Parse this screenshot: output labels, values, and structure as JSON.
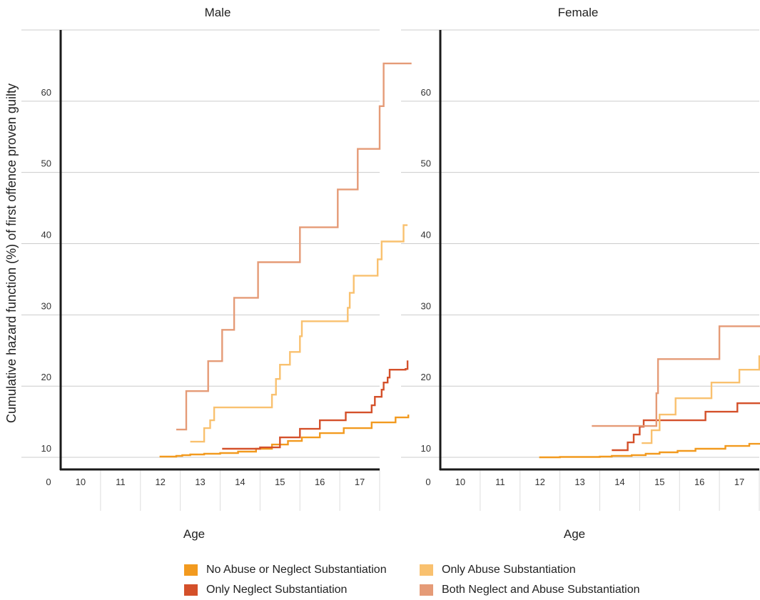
{
  "panels": [
    {
      "title": "Male"
    },
    {
      "title": "Female"
    }
  ],
  "y_axis_label": "Cumulative hazard function (%) of first offence proven guilty",
  "x_axis_label": "Age",
  "legend": [
    {
      "label": "No Abuse or Neglect Substantiation",
      "color": "#f29a1f"
    },
    {
      "label": "Only Abuse Substantiation",
      "color": "#f9c16f"
    },
    {
      "label": "Only Neglect Substantiation",
      "color": "#d4502a"
    },
    {
      "label": "Both Neglect and Abuse Substantiation",
      "color": "#e59b77"
    }
  ],
  "chart_data": [
    {
      "type": "line",
      "step": true,
      "title": "Male",
      "xlabel": "Age",
      "ylabel": "Cumulative hazard function (%) of first offence proven guilty",
      "x_tick_labels": [
        "0",
        "10",
        "11",
        "12",
        "13",
        "14",
        "15",
        "16",
        "17"
      ],
      "y_tick_labels": [
        "10",
        "20",
        "30",
        "40",
        "50",
        "60"
      ],
      "y_ticks": [
        10,
        20,
        30,
        40,
        50,
        60
      ],
      "ylim": [
        8.3,
        70
      ],
      "grid": true,
      "series": [
        {
          "name": "No Abuse or Neglect Substantiation",
          "x": [
            10.98,
            11.4,
            11.55,
            11.75,
            12.1,
            12.5,
            12.95,
            13.4,
            13.8,
            14.2,
            14.55,
            15.0,
            15.6,
            16.3,
            16.9,
            17.22
          ],
          "y": [
            10.1,
            10.2,
            10.3,
            10.4,
            10.5,
            10.6,
            10.8,
            11.2,
            11.8,
            12.3,
            12.8,
            13.4,
            14.1,
            14.9,
            15.6,
            16.0
          ]
        },
        {
          "name": "Only Neglect Substantiation",
          "x": [
            12.55,
            13.5,
            14.0,
            14.5,
            15.0,
            15.65,
            16.3,
            16.38,
            16.55,
            16.6,
            16.7,
            16.75,
            17.15,
            17.2
          ],
          "y": [
            11.2,
            11.4,
            12.8,
            14.0,
            15.2,
            16.3,
            17.3,
            18.5,
            19.5,
            20.5,
            21.2,
            22.3,
            22.4,
            23.6
          ]
        },
        {
          "name": "Only Abuse Substantiation",
          "x": [
            11.75,
            12.1,
            12.25,
            12.35,
            13.6,
            13.8,
            13.9,
            14.0,
            14.25,
            14.5,
            14.55,
            15.65,
            15.7,
            15.75,
            15.85,
            16.35,
            16.45,
            16.55,
            17.1,
            17.2
          ],
          "y": [
            12.2,
            14.1,
            15.2,
            17.0,
            17.0,
            18.8,
            21.0,
            23.0,
            24.8,
            27.0,
            29.1,
            29.1,
            31.0,
            33.1,
            35.5,
            35.5,
            37.8,
            40.3,
            42.6,
            42.6
          ]
        },
        {
          "name": "Both Neglect and Abuse Substantiation",
          "x": [
            11.4,
            11.65,
            12.2,
            12.55,
            12.85,
            13.45,
            14.5,
            15.0,
            15.45,
            15.95,
            16.05,
            16.5,
            16.6,
            17.3
          ],
          "y": [
            13.9,
            19.3,
            23.5,
            27.9,
            32.4,
            37.4,
            42.3,
            42.3,
            47.6,
            53.3,
            53.3,
            59.3,
            65.3,
            65.3
          ]
        }
      ]
    },
    {
      "type": "line",
      "step": true,
      "title": "Female",
      "xlabel": "Age",
      "ylabel": "",
      "x_tick_labels": [
        "0",
        "10",
        "11",
        "12",
        "13",
        "14",
        "15",
        "16",
        "17"
      ],
      "y_tick_labels": [
        "10",
        "20",
        "30",
        "40",
        "50",
        "60"
      ],
      "y_ticks": [
        10,
        20,
        30,
        40,
        50,
        60
      ],
      "ylim": [
        8.3,
        70
      ],
      "grid": true,
      "series": [
        {
          "name": "No Abuse or Neglect Substantiation",
          "x": [
            10.98,
            11.5,
            12.5,
            12.8,
            13.3,
            13.65,
            14.0,
            14.45,
            14.9,
            15.65,
            16.25,
            16.6,
            17.05,
            17.25
          ],
          "y": [
            10.0,
            10.05,
            10.1,
            10.2,
            10.3,
            10.5,
            10.7,
            10.9,
            11.2,
            11.6,
            11.9,
            12.2,
            12.3,
            12.3
          ]
        },
        {
          "name": "Only Neglect Substantiation",
          "x": [
            12.8,
            13.2,
            13.35,
            13.5,
            13.6,
            14.5,
            15.15,
            15.95,
            16.65,
            17.25
          ],
          "y": [
            11.0,
            12.1,
            13.2,
            14.3,
            15.2,
            15.2,
            16.4,
            17.6,
            17.6,
            19.2
          ]
        },
        {
          "name": "Only Abuse Substantiation",
          "x": [
            13.55,
            13.8,
            14.0,
            14.15,
            14.4,
            14.9,
            15.3,
            16.0,
            16.5,
            17.05,
            17.25
          ],
          "y": [
            12.0,
            13.8,
            16.0,
            16.0,
            18.3,
            18.3,
            20.5,
            22.3,
            24.2,
            24.2,
            26.7
          ]
        },
        {
          "name": "Both Neglect and Abuse Substantiation",
          "x": [
            12.3,
            13.3,
            13.8,
            13.92,
            13.96,
            14.3,
            15.1,
            15.5,
            15.7,
            16.2,
            16.75,
            17.25
          ],
          "y": [
            14.4,
            14.4,
            14.4,
            19.0,
            23.8,
            23.8,
            23.8,
            28.4,
            28.4,
            28.4,
            28.4,
            28.4
          ]
        }
      ]
    }
  ]
}
